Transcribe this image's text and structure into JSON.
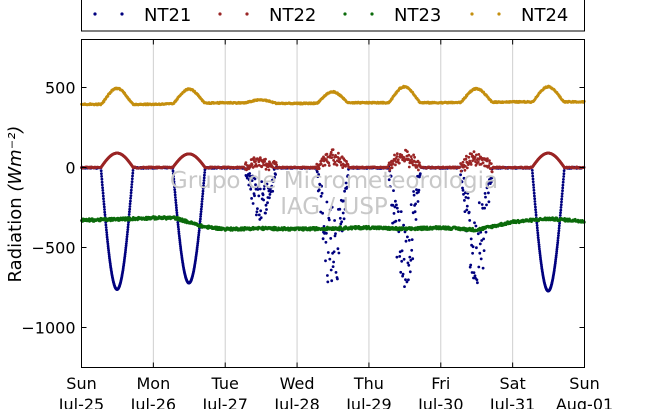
{
  "chart_data": {
    "type": "scatter",
    "ylabel": "Radiation",
    "ylabel_unit": "(Wm⁻²)",
    "ylim": [
      -1250,
      800
    ],
    "yticks": [
      500,
      0,
      -500,
      -1000
    ],
    "ytick_labels": [
      "500",
      "0",
      "−500",
      "−1000"
    ],
    "xlim": [
      0,
      7
    ],
    "xticks": [
      {
        "x": 0,
        "day": "Sun",
        "date": "Jul-25"
      },
      {
        "x": 1,
        "day": "Mon",
        "date": "Jul-26"
      },
      {
        "x": 2,
        "day": "Tue",
        "date": "Jul-27"
      },
      {
        "x": 3,
        "day": "Wed",
        "date": "Jul-28"
      },
      {
        "x": 4,
        "day": "Thu",
        "date": "Jul-29"
      },
      {
        "x": 5,
        "day": "Fri",
        "date": "Jul-30"
      },
      {
        "x": 6,
        "day": "Sat",
        "date": "Jul-31"
      },
      {
        "x": 7,
        "day": "Sun",
        "date": "Aug-01"
      }
    ],
    "grid": "vertical",
    "legend_position": "top",
    "watermark": [
      "Grupo de Micrometeorologia",
      "IAG / USP"
    ],
    "series": [
      {
        "name": "NT21",
        "color": "#00007f",
        "night": -2,
        "day_amp": [
          -760,
          -720,
          -300,
          -700,
          -730,
          -680,
          -770
        ],
        "day_noise": [
          0,
          0,
          1,
          1,
          1,
          1,
          0
        ]
      },
      {
        "name": "NT22",
        "color": "#9a2525",
        "night": 0,
        "day_amp": [
          90,
          85,
          40,
          90,
          80,
          70,
          90
        ],
        "day_noise": [
          0,
          0,
          1,
          1,
          1,
          1,
          0
        ]
      },
      {
        "name": "NT23",
        "color": "#0b6b0b",
        "base_points": [
          [
            0,
            -330
          ],
          [
            0.4,
            -325
          ],
          [
            1.0,
            -315
          ],
          [
            1.3,
            -315
          ],
          [
            1.7,
            -370
          ],
          [
            2.0,
            -385
          ],
          [
            2.5,
            -380
          ],
          [
            3.0,
            -385
          ],
          [
            3.5,
            -380
          ],
          [
            4.0,
            -375
          ],
          [
            4.5,
            -385
          ],
          [
            5.0,
            -375
          ],
          [
            5.5,
            -390
          ],
          [
            6.0,
            -340
          ],
          [
            6.5,
            -320
          ],
          [
            7.0,
            -335
          ]
        ]
      },
      {
        "name": "NT24",
        "color": "#c48f0f",
        "base_points": [
          [
            0,
            395
          ],
          [
            1,
            395
          ],
          [
            2,
            405
          ],
          [
            3,
            400
          ],
          [
            4,
            405
          ],
          [
            5,
            405
          ],
          [
            6,
            410
          ],
          [
            7,
            410
          ]
        ],
        "day_amp": [
          100,
          90,
          20,
          70,
          100,
          85,
          95
        ]
      }
    ],
    "daylight_window": [
      0.27,
      0.72
    ]
  }
}
